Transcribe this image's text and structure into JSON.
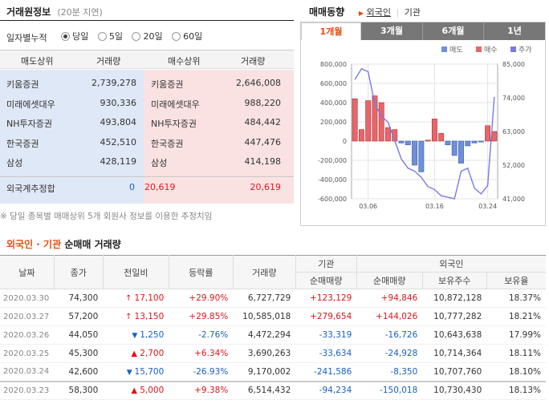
{
  "header": {
    "title": "거래원정보",
    "delay": "(20분 지연)",
    "trend_title": "매매동향",
    "trend_links": [
      "외국인",
      "기관"
    ]
  },
  "period": {
    "label": "일자별누적",
    "options": [
      "당일",
      "5일",
      "20일",
      "60일"
    ],
    "selected": "당일"
  },
  "brokers": {
    "headers": [
      "매도상위",
      "거래량",
      "매수상위",
      "거래량"
    ],
    "rows": [
      {
        "sell": "키움증권",
        "sell_vol": "2,739,278",
        "buy": "키움증권",
        "buy_vol": "2,646,008"
      },
      {
        "sell": "미래에셋대우",
        "sell_vol": "930,336",
        "buy": "미래에셋대우",
        "buy_vol": "988,220"
      },
      {
        "sell": "NH투자증권",
        "sell_vol": "493,804",
        "buy": "NH투자증권",
        "buy_vol": "484,442"
      },
      {
        "sell": "한국증권",
        "sell_vol": "452,510",
        "buy": "한국증권",
        "buy_vol": "447,476"
      },
      {
        "sell": "삼성",
        "sell_vol": "428,119",
        "buy": "삼성",
        "buy_vol": "414,198"
      }
    ],
    "foreign": {
      "label": "외국계추정합",
      "sell": "0",
      "diff": "20,619",
      "buy": "20,619"
    },
    "note": "※ 당일 종목별 매매상위 5개 회원사 정보를 이용한 추정치임"
  },
  "tabs": [
    "1개월",
    "3개월",
    "6개월",
    "1년"
  ],
  "active_tab": "1개월",
  "chart_data": {
    "type": "bar",
    "legend": [
      "매도",
      "매수",
      "주가"
    ],
    "colors": {
      "sell": "#6f8fd6",
      "buy": "#e8666a",
      "price": "#7b78e8"
    },
    "ylim_left": [
      -600000,
      800000
    ],
    "left_ticks": [
      "800,000",
      "600,000",
      "400,000",
      "200,000",
      "0",
      "-200,000",
      "-400,000",
      "-600,000"
    ],
    "ylim_right": [
      41000,
      85000
    ],
    "right_ticks": [
      "85,000",
      "74,000",
      "63,000",
      "52,000",
      "41,000"
    ],
    "x_ticks": [
      "03.06",
      "03.16",
      "03.24"
    ],
    "values": [
      440000,
      120000,
      420000,
      470000,
      400000,
      140000,
      120000,
      -20000,
      -40000,
      -250000,
      -320000,
      10000,
      230000,
      80000,
      -40000,
      -150000,
      -230000,
      -50000,
      -20000,
      -10000,
      160000,
      100000
    ],
    "price": [
      80000,
      83500,
      82500,
      72000,
      68000,
      66000,
      60000,
      54000,
      51000,
      50000,
      48000,
      45000,
      44000,
      42000,
      41500,
      41000,
      50000,
      51000,
      44500,
      42600,
      45300,
      74300
    ]
  },
  "net_title": {
    "prefix": "외국인 · 기관",
    "suffix": "순매매 거래량"
  },
  "table": {
    "headers": {
      "date": "날짜",
      "close": "종가",
      "change": "전일비",
      "rate": "등락률",
      "volume": "거래량",
      "inst": "기관",
      "foreign": "외국인",
      "inst_net": "순매매량",
      "for_net": "순매매량",
      "for_hold": "보유주수",
      "for_ratio": "보유율"
    },
    "rows": [
      {
        "date": "2020.03.30",
        "close": "74,300",
        "dir": "up",
        "change": "17,100",
        "rate": "+29.90%",
        "volume": "6,727,729",
        "inst": "+123,129",
        "for_net": "+94,846",
        "hold": "10,872,128",
        "ratio": "18.37%"
      },
      {
        "date": "2020.03.27",
        "close": "57,200",
        "dir": "up",
        "change": "13,150",
        "rate": "+29.85%",
        "volume": "10,585,018",
        "inst": "+279,654",
        "for_net": "+144,026",
        "hold": "10,777,282",
        "ratio": "18.21%"
      },
      {
        "date": "2020.03.26",
        "close": "44,050",
        "dir": "down",
        "change": "1,250",
        "rate": "-2.76%",
        "volume": "4,472,294",
        "inst": "-33,319",
        "for_net": "-16,726",
        "hold": "10,643,638",
        "ratio": "17.99%"
      },
      {
        "date": "2020.03.25",
        "close": "45,300",
        "dir": "rise",
        "change": "2,700",
        "rate": "+6.34%",
        "volume": "3,690,263",
        "inst": "-33,634",
        "for_net": "-24,928",
        "hold": "10,714,364",
        "ratio": "18.11%"
      },
      {
        "date": "2020.03.24",
        "close": "42,600",
        "dir": "down",
        "change": "15,700",
        "rate": "-26.93%",
        "volume": "9,170,002",
        "inst": "-241,586",
        "for_net": "-8,350",
        "hold": "10,707,760",
        "ratio": "18.10%"
      },
      {
        "date": "2020.03.23",
        "close": "58,300",
        "dir": "rise",
        "change": "5,000",
        "rate": "+9.38%",
        "volume": "6,514,432",
        "inst": "-94,234",
        "for_net": "-150,018",
        "hold": "10,730,430",
        "ratio": "18.13%"
      }
    ]
  }
}
